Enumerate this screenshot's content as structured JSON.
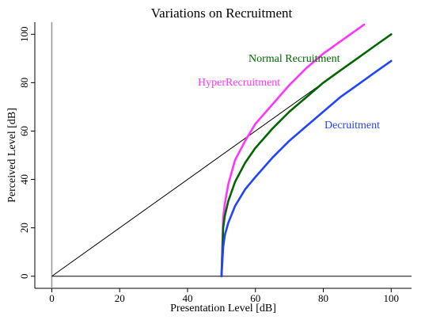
{
  "chart_data": {
    "type": "line",
    "title": "Variations on Recruitment",
    "xlabel": "Presentation Level [dB]",
    "ylabel": "Perceived Level [dB]",
    "xlim": [
      -5,
      106
    ],
    "ylim": [
      -5,
      105
    ],
    "xticks": [
      0,
      20,
      40,
      60,
      80,
      100
    ],
    "yticks": [
      0,
      20,
      40,
      60,
      80,
      100
    ],
    "grid": false,
    "reference_lines": [
      {
        "type": "identity",
        "color": "#000000"
      },
      {
        "type": "vertical",
        "x": 0,
        "color": "#9a9a9a"
      },
      {
        "type": "horizontal",
        "y": 0,
        "color": "#000000"
      }
    ],
    "series": [
      {
        "name": "HyperRecruitment",
        "color": "#ff33ff",
        "x": [
          50,
          50.5,
          51,
          52,
          54,
          57,
          60,
          65,
          70,
          75,
          80,
          85,
          90,
          92
        ],
        "y": [
          0,
          24,
          30,
          38,
          48,
          56,
          63,
          71,
          79,
          86,
          92,
          97,
          102,
          104
        ]
      },
      {
        "name": "Normal Recruitment",
        "color": "#006600",
        "x": [
          50,
          50.5,
          51,
          52,
          54,
          57,
          60,
          65,
          70,
          75,
          80,
          85,
          90,
          95,
          100
        ],
        "y": [
          0,
          20,
          25,
          31,
          39,
          47,
          53,
          61,
          68,
          74,
          80,
          85,
          90,
          95,
          100
        ]
      },
      {
        "name": "Decruitment",
        "color": "#2244ff",
        "x": [
          50,
          50.5,
          51,
          52,
          54,
          57,
          60,
          65,
          70,
          75,
          80,
          85,
          90,
          95,
          100
        ],
        "y": [
          0,
          12,
          17,
          22,
          29,
          36,
          41,
          49,
          56,
          62,
          68,
          74,
          79,
          84,
          89
        ]
      }
    ]
  }
}
